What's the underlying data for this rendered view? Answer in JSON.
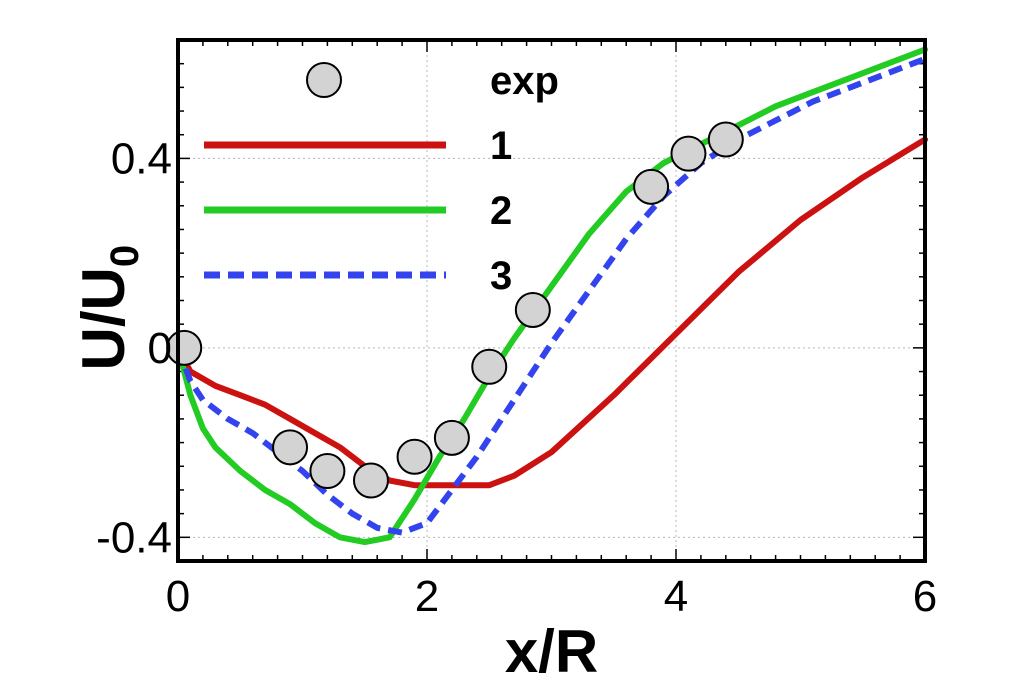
{
  "chart_data": {
    "type": "line",
    "xlabel": "x/R",
    "ylabel": {
      "main": "U/U",
      "sub": "0"
    },
    "xlim": [
      0,
      6
    ],
    "ylim": [
      -0.45,
      0.65
    ],
    "x_ticks": [
      0,
      2,
      4,
      6
    ],
    "x_tick_labels": [
      "0",
      "2",
      "4",
      "6"
    ],
    "y_ticks": [
      -0.4,
      0,
      0.4
    ],
    "y_tick_labels": [
      "-0.4",
      "0",
      "0.4"
    ],
    "grid": true,
    "legend_position": "top-left",
    "series": [
      {
        "name": "exp",
        "kind": "scatter",
        "color": "#d3d3d3",
        "x": [
          0.05,
          0.9,
          1.2,
          1.55,
          1.9,
          2.2,
          2.5,
          2.85,
          3.8,
          4.1,
          4.4
        ],
        "y": [
          0.0,
          -0.21,
          -0.26,
          -0.28,
          -0.23,
          -0.19,
          -0.04,
          0.08,
          0.34,
          0.41,
          0.44
        ]
      },
      {
        "name": "1",
        "kind": "line",
        "color": "#cc1111",
        "dash": "solid",
        "x": [
          0.0,
          0.1,
          0.3,
          0.5,
          0.7,
          0.9,
          1.1,
          1.3,
          1.5,
          1.7,
          1.9,
          2.1,
          2.3,
          2.5,
          2.7,
          3.0,
          3.5,
          4.0,
          4.5,
          5.0,
          5.5,
          6.0
        ],
        "y": [
          0.0,
          -0.05,
          -0.08,
          -0.1,
          -0.12,
          -0.15,
          -0.18,
          -0.21,
          -0.25,
          -0.28,
          -0.29,
          -0.29,
          -0.29,
          -0.29,
          -0.27,
          -0.22,
          -0.1,
          0.03,
          0.16,
          0.27,
          0.36,
          0.44
        ]
      },
      {
        "name": "2",
        "kind": "line",
        "color": "#22cc22",
        "dash": "solid",
        "x": [
          0.0,
          0.1,
          0.2,
          0.3,
          0.5,
          0.7,
          0.9,
          1.1,
          1.3,
          1.5,
          1.7,
          1.9,
          2.1,
          2.3,
          2.5,
          2.7,
          3.0,
          3.3,
          3.6,
          3.9,
          4.2,
          4.5,
          4.8,
          5.1,
          5.4,
          5.7,
          6.0
        ],
        "y": [
          0.0,
          -0.1,
          -0.17,
          -0.21,
          -0.26,
          -0.3,
          -0.33,
          -0.37,
          -0.4,
          -0.41,
          -0.4,
          -0.32,
          -0.23,
          -0.15,
          -0.06,
          0.02,
          0.13,
          0.24,
          0.33,
          0.39,
          0.43,
          0.47,
          0.51,
          0.54,
          0.57,
          0.6,
          0.63
        ]
      },
      {
        "name": "3",
        "kind": "line",
        "color": "#3344ee",
        "dash": "dashed",
        "x": [
          0.0,
          0.1,
          0.2,
          0.4,
          0.6,
          0.8,
          1.0,
          1.2,
          1.4,
          1.6,
          1.8,
          2.0,
          2.2,
          2.4,
          2.6,
          2.8,
          3.0,
          3.3,
          3.6,
          3.9,
          4.2,
          4.5,
          4.8,
          5.1,
          5.4,
          5.7,
          6.0
        ],
        "y": [
          0.0,
          -0.07,
          -0.11,
          -0.15,
          -0.18,
          -0.22,
          -0.26,
          -0.31,
          -0.35,
          -0.38,
          -0.39,
          -0.37,
          -0.3,
          -0.23,
          -0.15,
          -0.07,
          0.01,
          0.12,
          0.23,
          0.32,
          0.39,
          0.44,
          0.48,
          0.52,
          0.55,
          0.58,
          0.61
        ]
      }
    ]
  }
}
